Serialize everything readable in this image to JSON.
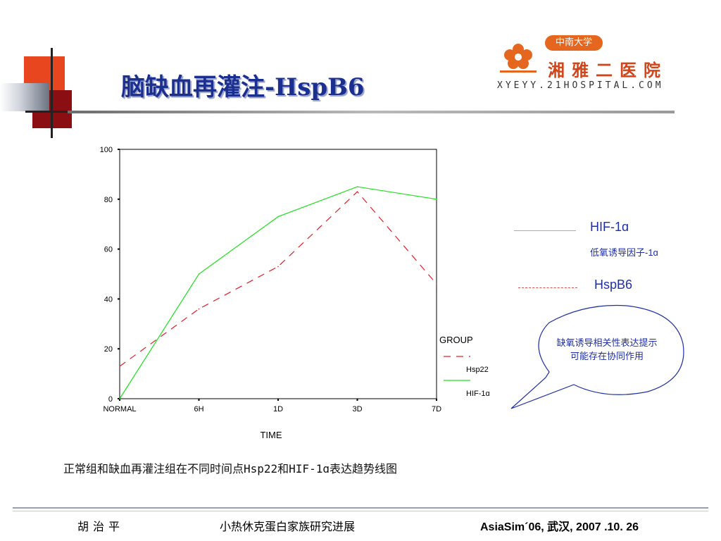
{
  "slide": {
    "title": "脑缺血再灌注-HspB6",
    "caption": "正常组和缺血再灌注组在不同时间点Hsp22和HIF-1ɑ表达趋势线图"
  },
  "logo": {
    "badge": "中南大学",
    "name": "湘雅二医院",
    "url": "XYEYY.21HOSPITAL.COM"
  },
  "legend_right": {
    "hif_label": "HIF-1ɑ",
    "hif_sub": "低氧诱导因子-1ɑ",
    "hsp_label": "HspB6"
  },
  "bubble": {
    "text": "缺氧诱导相关性表达提示可能存在协同作用"
  },
  "footer": {
    "author": "胡治平",
    "topic": "小热休克蛋白家族研究进展",
    "conference": "AsiaSim´06, 武汉, 2007 .10. 26"
  },
  "colors": {
    "hif": "#1ee01e",
    "hsp": "#e0202a",
    "title": "#1a2f8f",
    "accent_text": "#1f2fa8"
  },
  "chart_data": {
    "type": "line",
    "categories": [
      "NORMAL",
      "6H",
      "1D",
      "3D",
      "7D"
    ],
    "xlabel": "TIME",
    "ylabel": "",
    "ylim": [
      0,
      100
    ],
    "yticks": [
      0,
      20,
      40,
      60,
      80,
      100
    ],
    "legend_title": "GROUP",
    "series": [
      {
        "name": "Hsp22",
        "values": [
          13,
          36,
          53,
          83,
          46
        ],
        "color": "#e0202a",
        "dashed": true
      },
      {
        "name": "HIF-1ɑ",
        "values": [
          0,
          50,
          73,
          85,
          80
        ],
        "color": "#1ee01e",
        "dashed": false
      }
    ]
  }
}
